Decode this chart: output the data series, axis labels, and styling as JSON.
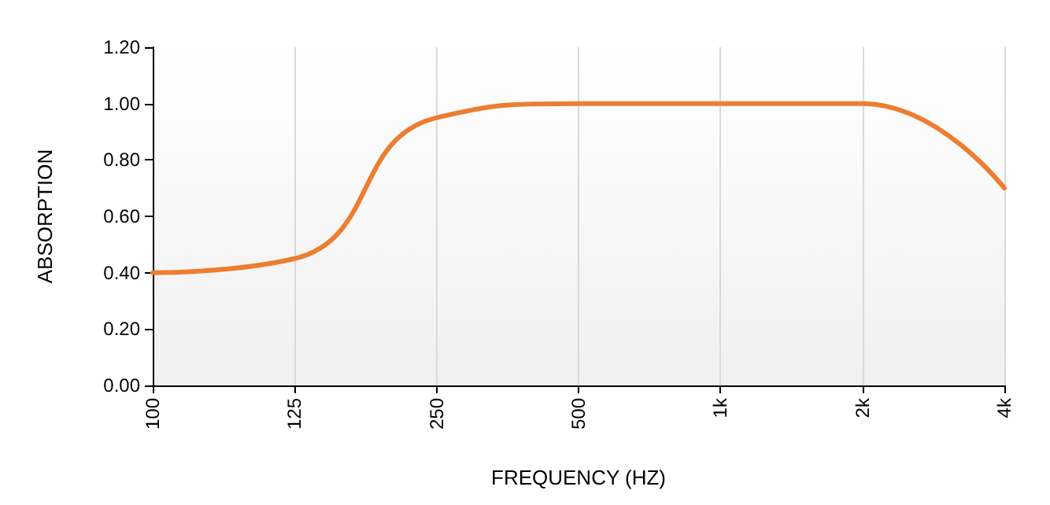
{
  "chart_data": {
    "type": "line",
    "xlabel": "FREQUENCY (HZ)",
    "ylabel": "ABSORPTION",
    "categories": [
      "100",
      "125",
      "250",
      "500",
      "1k",
      "2k",
      "4k"
    ],
    "series": [
      {
        "color": "#ed7d31",
        "values": [
          0.4,
          0.45,
          0.95,
          1.0,
          1.0,
          1.0,
          0.7
        ]
      }
    ],
    "ylim": [
      0,
      1.2
    ],
    "yticks": [
      {
        "value": 0,
        "label": "0.00"
      },
      {
        "value": 0.2,
        "label": "0.20"
      },
      {
        "value": 0.4,
        "label": "0.40"
      },
      {
        "value": 0.6,
        "label": "0.60"
      },
      {
        "value": 0.8,
        "label": "0.80"
      },
      {
        "value": 1,
        "label": "1.00"
      },
      {
        "value": 1.2,
        "label": "1.20"
      }
    ],
    "grid": "x",
    "marker": "none",
    "line_style": "solid"
  }
}
